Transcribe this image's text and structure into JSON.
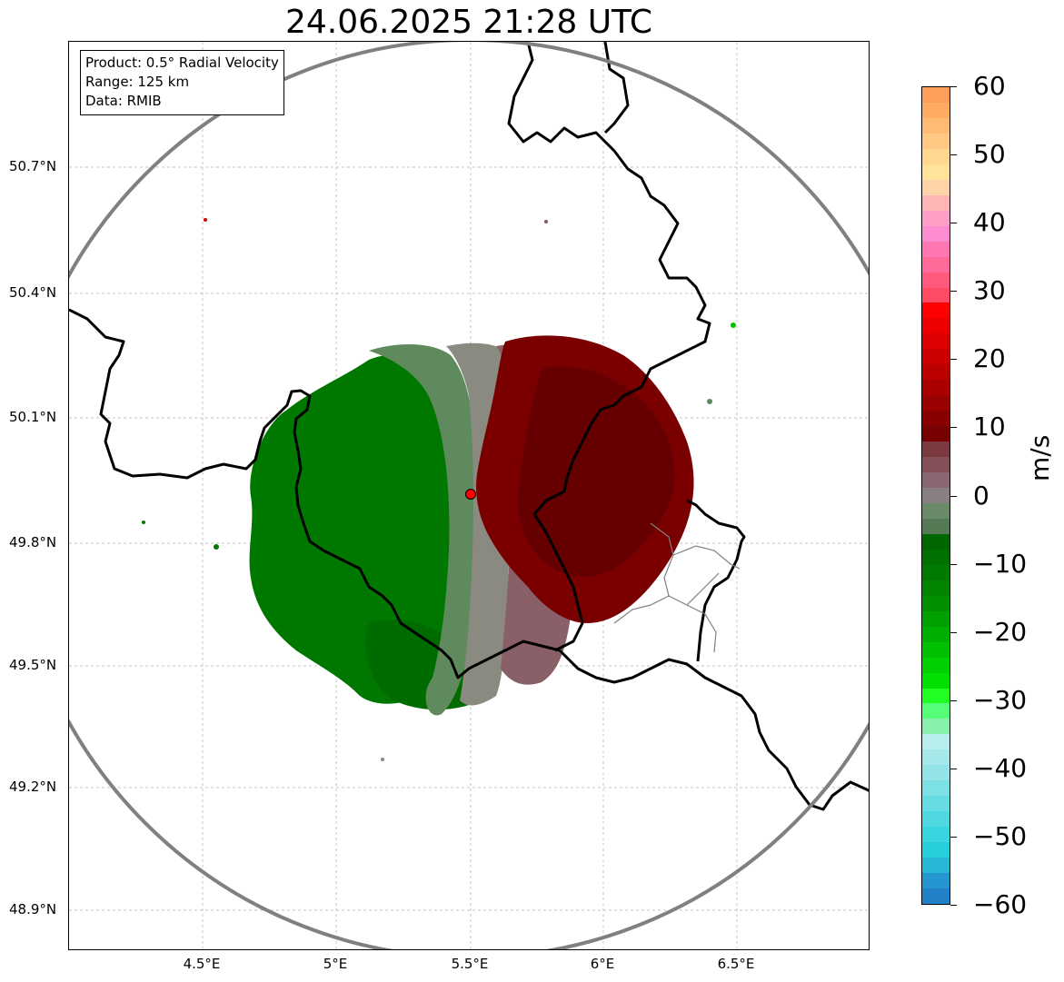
{
  "title": "24.06.2025 21:28 UTC",
  "info": {
    "product": "Product: 0.5° Radial Velocity",
    "range": "Range: 125 km",
    "data": "Data: RMIB"
  },
  "lat_ticks": [
    "50.7°N",
    "50.4°N",
    "50.1°N",
    "49.8°N",
    "49.5°N",
    "49.2°N",
    "48.9°N"
  ],
  "lon_ticks": [
    "4.5°E",
    "5°E",
    "5.5°E",
    "6°E",
    "6.5°E"
  ],
  "colorbar": {
    "label": "m/s",
    "ticks": [
      "60",
      "50",
      "40",
      "30",
      "20",
      "10",
      "0",
      "−10",
      "−20",
      "−30",
      "−40",
      "−50",
      "−60"
    ],
    "min": -60,
    "max": 60,
    "colors": [
      "#ff9e5a",
      "#ffab62",
      "#ffba73",
      "#ffc984",
      "#ffd78f",
      "#ffe39a",
      "#ffd3a8",
      "#ffb5b5",
      "#ff9fc6",
      "#ff8bd1",
      "#ff77b2",
      "#ff6a98",
      "#ff5a7e",
      "#ff4a64",
      "#ff0000",
      "#ee0000",
      "#dd0000",
      "#cc0000",
      "#bb0000",
      "#aa0000",
      "#990000",
      "#880000",
      "#770000",
      "#7a3a40",
      "#845058",
      "#8a6670",
      "#888080",
      "#6a8a6a",
      "#567a56",
      "#006600",
      "#007000",
      "#007a00",
      "#008500",
      "#009000",
      "#00a000",
      "#00b000",
      "#00c000",
      "#00d000",
      "#00e000",
      "#22ff22",
      "#55ff77",
      "#88f0aa",
      "#b8eeee",
      "#a6e8ea",
      "#92e4e6",
      "#7ce0e4",
      "#66dde2",
      "#50d8e0",
      "#3ad6e0",
      "#28cedc",
      "#26b6d6",
      "#2696d0",
      "#2080c8"
    ]
  },
  "radar": {
    "site_lon": 5.5,
    "site_lat": 49.913,
    "range_km": 125,
    "colors": {
      "neg_strong": "#007800",
      "neg_mid": "#008a00",
      "neg_weak": "#5e8a5e",
      "zero": "#8a8a80",
      "pos_weak": "#8a6068",
      "pos_strong": "#7a0000",
      "ring": "#808080",
      "border": "#000000",
      "grid": "#b0b0b0",
      "site": "#ff0000"
    }
  }
}
